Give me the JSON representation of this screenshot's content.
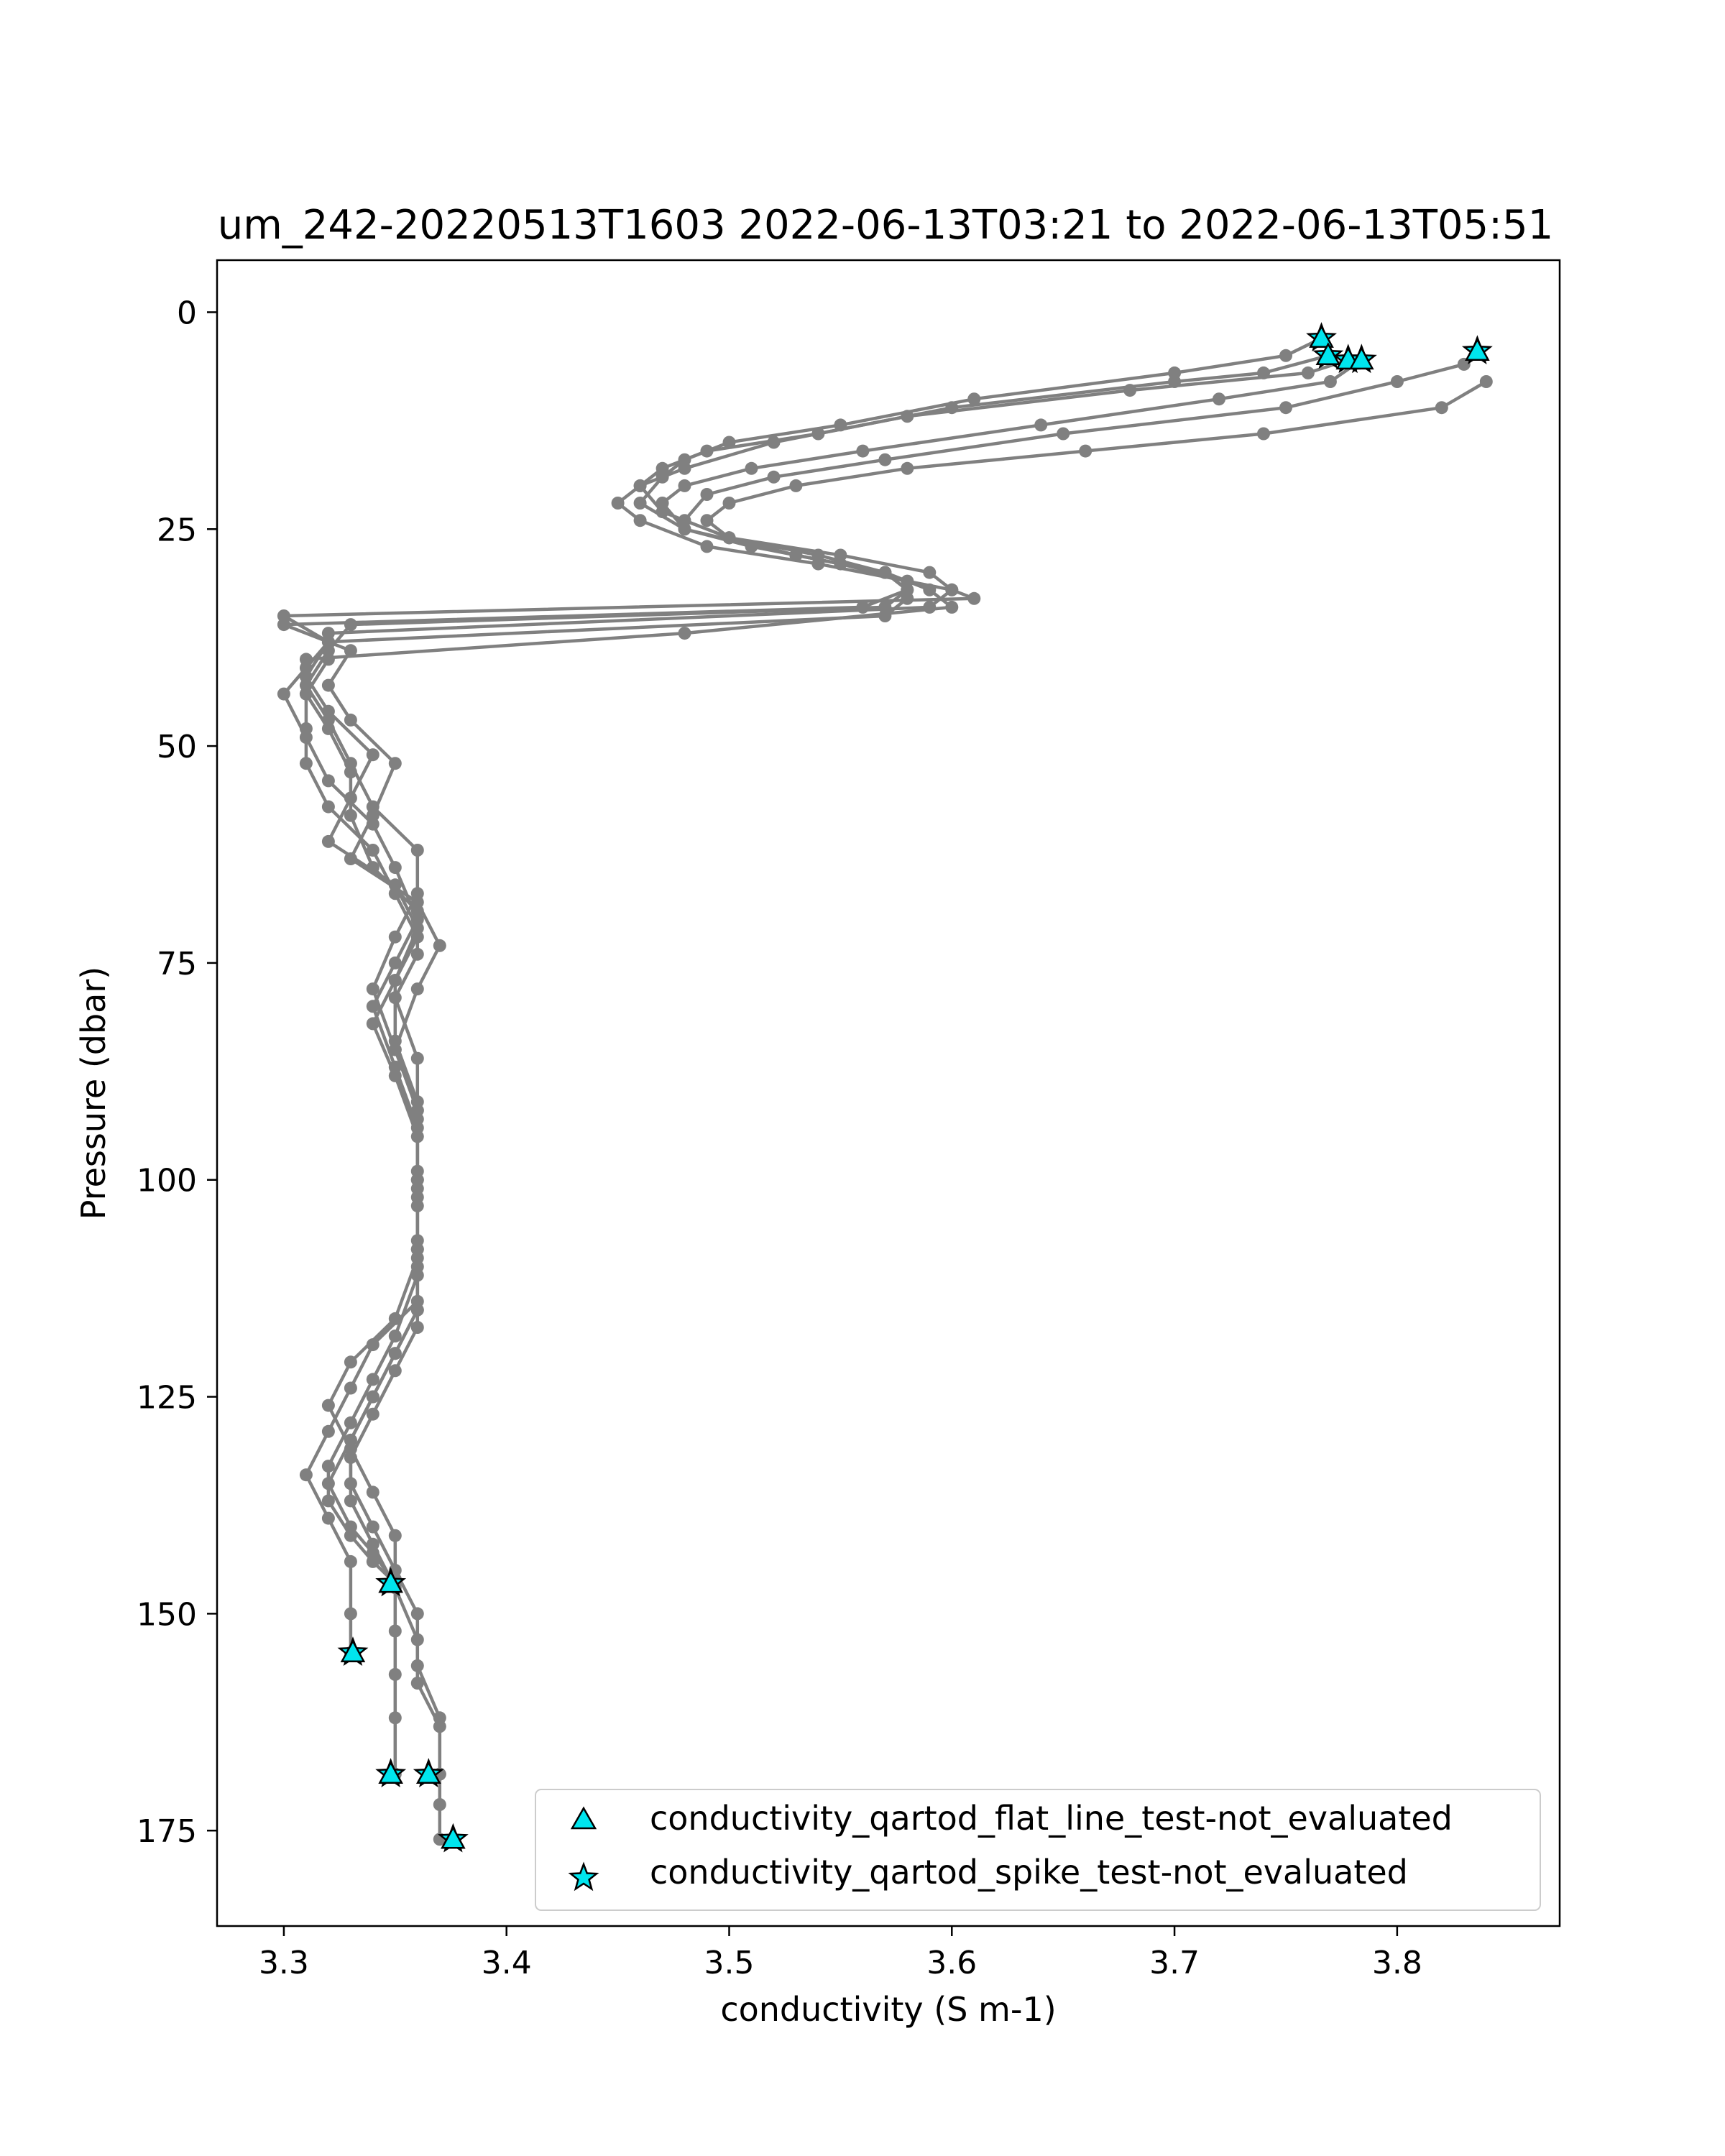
{
  "chart_data": {
    "type": "scatter",
    "title": "um_242-20220513T1603 2022-06-13T03:21 to 2022-06-13T05:51",
    "xlabel": "conductivity (S m-1)",
    "ylabel": "Pressure (dbar)",
    "xlim": [
      3.27,
      3.873
    ],
    "ylim": [
      186,
      -6
    ],
    "y_inverted": true,
    "x_ticks": [
      3.3,
      3.4,
      3.5,
      3.6,
      3.7,
      3.8
    ],
    "x_tick_labels": [
      "3.3",
      "3.4",
      "3.5",
      "3.6",
      "3.7",
      "3.8"
    ],
    "y_ticks": [
      0,
      25,
      50,
      75,
      100,
      125,
      150,
      175
    ],
    "y_tick_labels": [
      "0",
      "25",
      "50",
      "75",
      "100",
      "125",
      "150",
      "175"
    ],
    "grid": false,
    "legend_position": "lower-right",
    "legend": [
      {
        "label": "conductivity_qartod_flat_line_test-not_evaluated",
        "marker": "triangle"
      },
      {
        "label": "conductivity_qartod_spike_test-not_evaluated",
        "marker": "star"
      }
    ],
    "colors": {
      "profile": "#808080",
      "flag_marker": "#00e5ee",
      "marker_edge": "#000000"
    },
    "series": [
      {
        "x": [
          3.766,
          3.75,
          3.7,
          3.61,
          3.55,
          3.5,
          3.48,
          3.47,
          3.46,
          3.48,
          3.53,
          3.57,
          3.58,
          3.56,
          3.3,
          3.33,
          3.32,
          3.33,
          3.35,
          3.34,
          3.33,
          3.36,
          3.37,
          3.36,
          3.35,
          3.36,
          3.36,
          3.36,
          3.36,
          3.35,
          3.34,
          3.33,
          3.32,
          3.33,
          3.34,
          3.35
        ],
        "y": [
          3,
          5,
          7,
          10,
          13,
          15,
          17,
          19,
          22,
          25,
          28,
          30,
          32,
          34,
          36,
          39,
          43,
          47,
          52,
          58,
          63,
          68,
          73,
          78,
          85,
          92,
          100,
          108,
          115,
          120,
          125,
          130,
          135,
          140,
          143,
          146.5
        ]
      },
      {
        "x": [
          3.769,
          3.74,
          3.7,
          3.6,
          3.54,
          3.49,
          3.47,
          3.46,
          3.47,
          3.5,
          3.55,
          3.59,
          3.6,
          3.61,
          3.3,
          3.32,
          3.31,
          3.32,
          3.34,
          3.33,
          3.32,
          3.35,
          3.36,
          3.35,
          3.35,
          3.36,
          3.36,
          3.36,
          3.36,
          3.34,
          3.33,
          3.32,
          3.31,
          3.32,
          3.33,
          3.33,
          3.33
        ],
        "y": [
          5,
          7,
          8,
          11,
          14,
          16,
          18,
          20,
          23,
          26,
          28,
          30,
          32,
          33,
          35,
          38,
          42,
          46,
          51,
          56,
          61,
          66,
          71,
          77,
          84,
          91,
          99,
          107,
          114,
          119,
          124,
          129,
          134,
          139,
          144,
          150,
          154.5
        ]
      },
      {
        "x": [
          3.778,
          3.76,
          3.68,
          3.58,
          3.52,
          3.48,
          3.46,
          3.45,
          3.46,
          3.49,
          3.54,
          3.58,
          3.6,
          3.59,
          3.32,
          3.32,
          3.31,
          3.32,
          3.33,
          3.33,
          3.34,
          3.36,
          3.36,
          3.35,
          3.36,
          3.36,
          3.36,
          3.36,
          3.35,
          3.33,
          3.32,
          3.33,
          3.34,
          3.35,
          3.35,
          3.35,
          3.35,
          3.35,
          3.35
        ],
        "y": [
          5.5,
          7,
          9,
          12,
          15,
          18,
          20,
          22,
          24,
          27,
          29,
          31,
          32,
          34,
          37,
          40,
          44,
          48,
          53,
          58,
          64,
          69,
          74,
          79,
          86,
          93,
          101,
          109,
          116,
          121,
          126,
          131,
          136,
          141,
          146,
          152,
          157,
          162,
          168.5
        ]
      },
      {
        "x": [
          3.784,
          3.77,
          3.72,
          3.64,
          3.56,
          3.51,
          3.48,
          3.47,
          3.48,
          3.51,
          3.55,
          3.58,
          3.58,
          3.57,
          3.32,
          3.31,
          3.3,
          3.31,
          3.32,
          3.34,
          3.35,
          3.36,
          3.35,
          3.34,
          3.35,
          3.36,
          3.36,
          3.36,
          3.36,
          3.35,
          3.34,
          3.33,
          3.33,
          3.34,
          3.35,
          3.36,
          3.36,
          3.37,
          3.37,
          3.37,
          3.37
        ],
        "y": [
          5.5,
          8,
          10,
          13,
          16,
          18,
          20,
          22,
          25,
          27,
          29,
          31,
          33,
          35,
          38,
          41,
          44,
          49,
          54,
          59,
          64,
          70,
          75,
          80,
          87,
          94,
          102,
          110,
          117,
          122,
          127,
          132,
          137,
          142,
          147,
          153,
          158,
          163,
          168.5,
          172,
          176
        ]
      },
      {
        "x": [
          3.836,
          3.83,
          3.8,
          3.75,
          3.65,
          3.57,
          3.52,
          3.49,
          3.48,
          3.5,
          3.54,
          3.57,
          3.58,
          3.57,
          3.33,
          3.32,
          3.31,
          3.32,
          3.33,
          3.34,
          3.36,
          3.36,
          3.35,
          3.34,
          3.35,
          3.36,
          3.36,
          3.36,
          3.36,
          3.35,
          3.34,
          3.33,
          3.33,
          3.34,
          3.35,
          3.36,
          3.36,
          3.37,
          3.37
        ],
        "y": [
          4.5,
          6,
          8,
          11,
          14,
          17,
          19,
          21,
          24,
          26,
          28,
          30,
          32,
          34,
          36,
          39,
          43,
          47,
          52,
          57,
          62,
          67,
          72,
          78,
          85,
          92,
          100,
          108,
          115,
          120,
          125,
          130,
          135,
          140,
          145,
          150,
          156,
          162,
          168.5
        ]
      },
      {
        "x": [
          3.84,
          3.82,
          3.74,
          3.66,
          3.58,
          3.53,
          3.5,
          3.49,
          3.5,
          3.53,
          3.57,
          3.59,
          3.6,
          3.48,
          3.31,
          3.31,
          3.31,
          3.31,
          3.32,
          3.34,
          3.35,
          3.36,
          3.35,
          3.34,
          3.35,
          3.36,
          3.36,
          3.36,
          3.35,
          3.34,
          3.33,
          3.32,
          3.32,
          3.33,
          3.34,
          3.35
        ],
        "y": [
          8,
          11,
          14,
          16,
          18,
          20,
          22,
          24,
          26,
          28,
          30,
          32,
          34,
          37,
          40,
          44,
          48,
          52,
          57,
          62,
          67,
          72,
          77,
          82,
          88,
          95,
          103,
          111,
          118,
          123,
          128,
          133,
          137,
          141,
          144,
          146.5
        ]
      }
    ],
    "flag_points": [
      {
        "flag": "spike_test",
        "points": [
          {
            "x": 3.766,
            "y": 3
          },
          {
            "x": 3.769,
            "y": 5
          },
          {
            "x": 3.778,
            "y": 5.5
          },
          {
            "x": 3.784,
            "y": 5.5
          },
          {
            "x": 3.836,
            "y": 4.5
          },
          {
            "x": 3.348,
            "y": 146.5
          },
          {
            "x": 3.331,
            "y": 154.5
          },
          {
            "x": 3.348,
            "y": 168.5
          },
          {
            "x": 3.365,
            "y": 168.5
          },
          {
            "x": 3.376,
            "y": 176
          }
        ]
      },
      {
        "flag": "flat_line_test",
        "points": [
          {
            "x": 3.766,
            "y": 3
          },
          {
            "x": 3.769,
            "y": 5
          },
          {
            "x": 3.778,
            "y": 5.5
          },
          {
            "x": 3.784,
            "y": 5.5
          },
          {
            "x": 3.836,
            "y": 4.5
          },
          {
            "x": 3.348,
            "y": 146.5
          },
          {
            "x": 3.331,
            "y": 154.5
          },
          {
            "x": 3.348,
            "y": 168.5
          },
          {
            "x": 3.365,
            "y": 168.5
          },
          {
            "x": 3.376,
            "y": 176
          }
        ]
      }
    ]
  }
}
